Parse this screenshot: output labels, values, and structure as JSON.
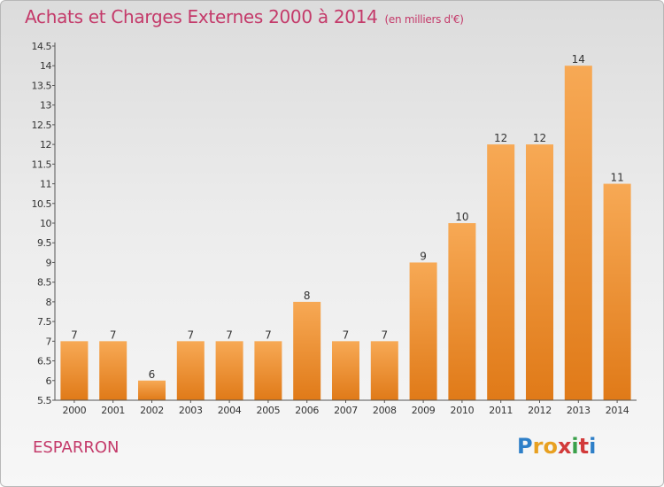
{
  "title": "Achats et Charges Externes 2000 à 2014",
  "unit_note": "(en milliers d'€)",
  "commune": "ESPARRON",
  "brand": {
    "letters": [
      "P",
      "r",
      "o",
      "x",
      "i",
      "t",
      "i"
    ],
    "colors": [
      "#2e7fc8",
      "#e8a020",
      "#e8a020",
      "#d23a3a",
      "#3aa04a",
      "#d23a3a",
      "#2e7fc8"
    ]
  },
  "colors": {
    "title": "#c43a6a",
    "bar_light": "#f7a955",
    "bar_dark": "#e07a18"
  },
  "chart_data": {
    "type": "bar",
    "categories": [
      "2000",
      "2001",
      "2002",
      "2003",
      "2004",
      "2005",
      "2006",
      "2007",
      "2008",
      "2009",
      "2010",
      "2011",
      "2012",
      "2013",
      "2014"
    ],
    "values": [
      7,
      7,
      6,
      7,
      7,
      7,
      8,
      7,
      7,
      9,
      10,
      12,
      12,
      14,
      11
    ],
    "value_labels": [
      "7",
      "7",
      "6",
      "7",
      "7",
      "7",
      "8",
      "7",
      "7",
      "9",
      "10",
      "12",
      "12",
      "14",
      "11"
    ],
    "ylim": [
      5.5,
      14.5
    ],
    "yticks": [
      "5.5",
      "6",
      "6.5",
      "7",
      "7.5",
      "8",
      "8.5",
      "9",
      "9.5",
      "10",
      "10.5",
      "11",
      "11.5",
      "12",
      "12.5",
      "13",
      "13.5",
      "14",
      "14.5"
    ],
    "grid": false,
    "legend": "none"
  }
}
